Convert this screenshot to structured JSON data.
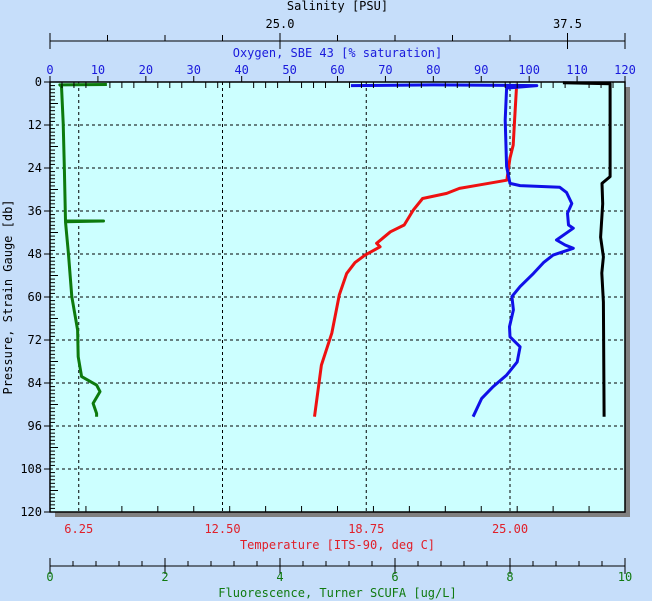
{
  "chart_data": {
    "type": "line",
    "orientation": "profile (vertical y axis, inverted)",
    "grid": true,
    "background_color": "#ccffff",
    "y_axis": {
      "label": "Pressure, Strain Gauge [db]",
      "range": [
        0,
        120
      ],
      "inverted": true,
      "ticks": [
        "0",
        "12",
        "24",
        "36",
        "48",
        "60",
        "72",
        "84",
        "96",
        "108",
        "120"
      ],
      "color": "#000000"
    },
    "x_axes": [
      {
        "id": "salinity",
        "position": "top-outer",
        "label": "Salinity [PSU]",
        "range": [
          15,
          40
        ],
        "tick_labels": [
          {
            "v": 25.0,
            "t": "25.0"
          },
          {
            "v": 37.5,
            "t": "37.5"
          }
        ],
        "minor_step": 2.5,
        "color": "#000000"
      },
      {
        "id": "oxygen",
        "position": "top-inner",
        "label": "Oxygen, SBE 43 [% saturation]",
        "range": [
          0,
          120
        ],
        "tick_labels": [
          {
            "v": 0,
            "t": "0"
          },
          {
            "v": 10,
            "t": "10"
          },
          {
            "v": 20,
            "t": "20"
          },
          {
            "v": 30,
            "t": "30"
          },
          {
            "v": 40,
            "t": "40"
          },
          {
            "v": 50,
            "t": "50"
          },
          {
            "v": 60,
            "t": "60"
          },
          {
            "v": 70,
            "t": "70"
          },
          {
            "v": 80,
            "t": "80"
          },
          {
            "v": 90,
            "t": "90"
          },
          {
            "v": 100,
            "t": "100"
          },
          {
            "v": 110,
            "t": "110"
          },
          {
            "v": 120,
            "t": "120"
          }
        ],
        "color": "#1a1adc"
      },
      {
        "id": "temperature",
        "position": "bottom-inner",
        "label": "Temperature [ITS-90, deg C]",
        "range": [
          5,
          30
        ],
        "tick_labels": [
          {
            "v": 6.25,
            "t": "6.25"
          },
          {
            "v": 12.5,
            "t": "12.50"
          },
          {
            "v": 18.75,
            "t": "18.75"
          },
          {
            "v": 25,
            "t": "25.00"
          }
        ],
        "color": "#e0202a"
      },
      {
        "id": "fluorescence",
        "position": "bottom-outer",
        "label": "Fluorescence, Turner SCUFA [ug/L]",
        "range": [
          0,
          10
        ],
        "tick_labels": [
          {
            "v": 0,
            "t": "0"
          },
          {
            "v": 2,
            "t": "2"
          },
          {
            "v": 4,
            "t": "4"
          },
          {
            "v": 6,
            "t": "6"
          },
          {
            "v": 8,
            "t": "8"
          },
          {
            "v": 10,
            "t": "10"
          }
        ],
        "minor_step": 0.4,
        "color": "#107a10"
      }
    ],
    "series": [
      {
        "axis": "temperature",
        "color": "#ee1111",
        "points": [
          [
            25.29,
            0.5
          ],
          [
            25.2,
            10.6
          ],
          [
            25.14,
            17.6
          ],
          [
            25.0,
            21.2
          ],
          [
            24.86,
            27.4
          ],
          [
            23.7,
            28.7
          ],
          [
            22.8,
            29.7
          ],
          [
            22.25,
            31.1
          ],
          [
            21.2,
            32.5
          ],
          [
            20.8,
            35.7
          ],
          [
            20.4,
            39.9
          ],
          [
            19.8,
            41.8
          ],
          [
            19.2,
            45.0
          ],
          [
            19.35,
            46.0
          ],
          [
            18.7,
            48.3
          ],
          [
            18.26,
            50.4
          ],
          [
            17.9,
            53.4
          ],
          [
            17.58,
            59.4
          ],
          [
            17.25,
            70.1
          ],
          [
            16.8,
            79.0
          ],
          [
            16.5,
            93.4
          ]
        ]
      },
      {
        "axis": "oxygen",
        "color": "#1010e8",
        "points": [
          [
            62.8,
            1.0
          ],
          [
            80,
            0.8
          ],
          [
            101.6,
            1.0
          ],
          [
            95.3,
            1.7
          ],
          [
            95.0,
            10.6
          ],
          [
            95.3,
            23.6
          ],
          [
            96.0,
            28.3
          ],
          [
            98.1,
            28.9
          ],
          [
            106.4,
            29.4
          ],
          [
            107.8,
            30.8
          ],
          [
            108.9,
            33.9
          ],
          [
            108.0,
            36.6
          ],
          [
            108.2,
            39.9
          ],
          [
            109.2,
            40.8
          ],
          [
            105.7,
            44.1
          ],
          [
            107.5,
            45.5
          ],
          [
            109.2,
            46.4
          ],
          [
            105.0,
            48.3
          ],
          [
            103.0,
            50.4
          ],
          [
            100.9,
            53.4
          ],
          [
            98.1,
            57.1
          ],
          [
            96.4,
            59.9
          ],
          [
            96.7,
            63.6
          ],
          [
            95.9,
            68.3
          ],
          [
            96.0,
            71.1
          ],
          [
            98.1,
            73.9
          ],
          [
            97.5,
            78.1
          ],
          [
            95.3,
            81.8
          ],
          [
            92.5,
            85.0
          ],
          [
            90.1,
            88.3
          ],
          [
            88.3,
            93.4
          ]
        ]
      },
      {
        "axis": "salinity",
        "color": "#000000",
        "points": [
          [
            37.3,
            0.2
          ],
          [
            39.35,
            0.5
          ],
          [
            39.35,
            6.0
          ],
          [
            39.35,
            26.4
          ],
          [
            39.0,
            28.3
          ],
          [
            39.03,
            34.0
          ],
          [
            38.94,
            43.3
          ],
          [
            39.06,
            48.8
          ],
          [
            38.99,
            53.3
          ],
          [
            39.06,
            61.4
          ],
          [
            39.09,
            93.4
          ]
        ]
      },
      {
        "axis": "fluorescence",
        "color": "#0d7a0d",
        "points": [
          [
            0.99,
            0.7
          ],
          [
            0.17,
            0.8
          ],
          [
            0.2,
            1.2
          ],
          [
            0.23,
            11.5
          ],
          [
            0.25,
            24.6
          ],
          [
            0.27,
            38.8
          ],
          [
            0.93,
            38.8
          ],
          [
            0.27,
            39.0
          ],
          [
            0.32,
            47.8
          ],
          [
            0.38,
            59.9
          ],
          [
            0.48,
            69.2
          ],
          [
            0.49,
            76.7
          ],
          [
            0.55,
            82.2
          ],
          [
            0.81,
            84.6
          ],
          [
            0.87,
            86.4
          ],
          [
            0.75,
            89.7
          ],
          [
            0.81,
            92.5
          ],
          [
            0.81,
            93.4
          ]
        ]
      }
    ]
  }
}
